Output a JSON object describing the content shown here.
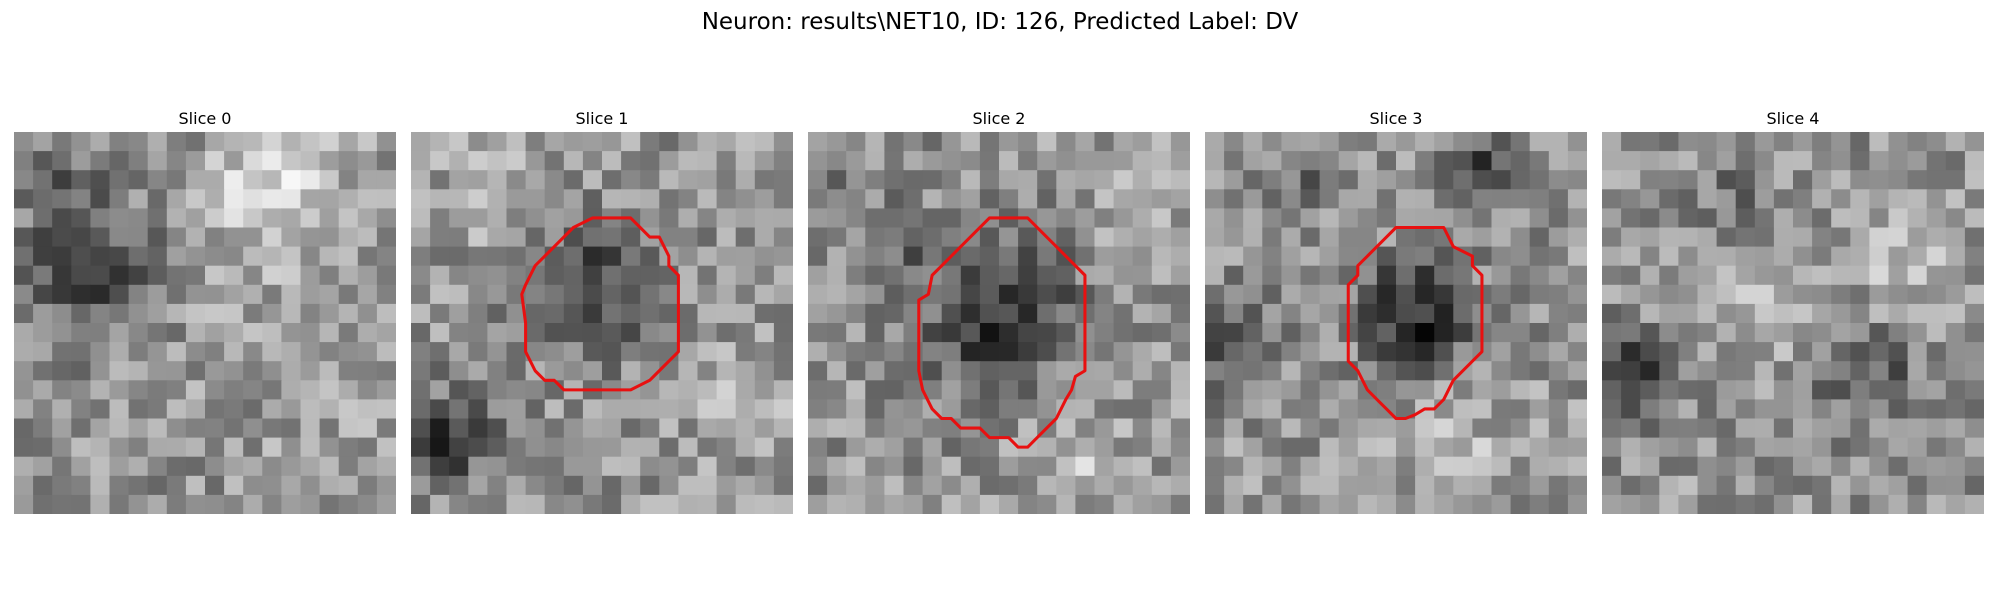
{
  "figure": {
    "title": "Neuron: results\\NET10, ID: 126, Predicted Label: DV",
    "colors": {
      "contour": "#e81010",
      "background": "#ffffff",
      "colormap": "gray"
    }
  },
  "panels": [
    {
      "title": "Slice 0",
      "has_contour": false,
      "contour_grid": []
    },
    {
      "title": "Slice 1",
      "has_contour": true,
      "contour_grid": [
        [
          9.5,
          4.5
        ],
        [
          11.5,
          4.5
        ],
        [
          12.5,
          5.5
        ],
        [
          13.0,
          5.5
        ],
        [
          13.5,
          6.5
        ],
        [
          13.5,
          7.0
        ],
        [
          14.0,
          7.5
        ],
        [
          14.0,
          11.5
        ],
        [
          13.0,
          12.5
        ],
        [
          12.5,
          13.0
        ],
        [
          11.5,
          13.5
        ],
        [
          8.0,
          13.5
        ],
        [
          7.5,
          13.0
        ],
        [
          7.0,
          13.0
        ],
        [
          6.5,
          12.5
        ],
        [
          6.0,
          11.5
        ],
        [
          6.0,
          10.0
        ],
        [
          5.8,
          8.5
        ],
        [
          6.0,
          8.0
        ],
        [
          6.5,
          7.0
        ],
        [
          7.0,
          6.5
        ],
        [
          8.0,
          5.5
        ],
        [
          8.5,
          5.0
        ]
      ]
    },
    {
      "title": "Slice 2",
      "has_contour": true,
      "contour_grid": [
        [
          9.5,
          4.5
        ],
        [
          11.5,
          4.5
        ],
        [
          12.5,
          5.5
        ],
        [
          13.0,
          6.0
        ],
        [
          13.5,
          6.5
        ],
        [
          14.5,
          7.5
        ],
        [
          14.5,
          12.5
        ],
        [
          14.0,
          12.8
        ],
        [
          13.8,
          13.5
        ],
        [
          13.5,
          14.0
        ],
        [
          13.0,
          15.0
        ],
        [
          12.0,
          16.0
        ],
        [
          11.5,
          16.5
        ],
        [
          11.0,
          16.5
        ],
        [
          10.5,
          16.0
        ],
        [
          9.5,
          16.0
        ],
        [
          9.0,
          15.5
        ],
        [
          8.0,
          15.5
        ],
        [
          7.5,
          15.0
        ],
        [
          7.0,
          15.0
        ],
        [
          6.5,
          14.5
        ],
        [
          6.0,
          13.5
        ],
        [
          5.8,
          12.5
        ],
        [
          5.8,
          8.8
        ],
        [
          6.3,
          8.5
        ],
        [
          6.5,
          7.5
        ],
        [
          7.5,
          6.5
        ],
        [
          8.0,
          6.0
        ]
      ]
    },
    {
      "title": "Slice 3",
      "has_contour": true,
      "contour_grid": [
        [
          10.0,
          5.0
        ],
        [
          12.5,
          5.0
        ],
        [
          13.0,
          6.0
        ],
        [
          14.0,
          6.5
        ],
        [
          14.0,
          7.0
        ],
        [
          14.5,
          7.5
        ],
        [
          14.5,
          11.5
        ],
        [
          14.0,
          12.0
        ],
        [
          13.0,
          13.0
        ],
        [
          12.5,
          14.0
        ],
        [
          12.0,
          14.5
        ],
        [
          11.5,
          14.5
        ],
        [
          11.0,
          14.8
        ],
        [
          10.5,
          15.0
        ],
        [
          10.0,
          15.0
        ],
        [
          9.5,
          14.5
        ],
        [
          9.0,
          14.0
        ],
        [
          8.5,
          13.5
        ],
        [
          8.0,
          12.5
        ],
        [
          7.5,
          12.0
        ],
        [
          7.5,
          8.0
        ],
        [
          8.0,
          7.5
        ],
        [
          8.0,
          7.0
        ],
        [
          8.5,
          6.5
        ],
        [
          9.5,
          5.5
        ]
      ]
    },
    {
      "title": "Slice 4",
      "has_contour": false,
      "contour_grid": []
    }
  ]
}
